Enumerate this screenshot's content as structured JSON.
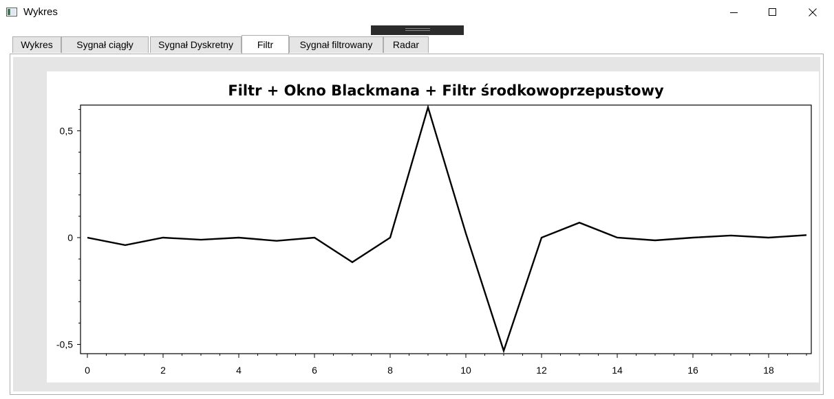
{
  "window": {
    "title": "Wykres",
    "icon": "app-window-icon",
    "controls": [
      "minimize-icon",
      "maximize-icon",
      "close-icon"
    ]
  },
  "tabs": [
    {
      "label": "Wykres",
      "active": false
    },
    {
      "label": "Sygnał ciągły",
      "active": false
    },
    {
      "label": "Sygnał Dyskretny",
      "active": false
    },
    {
      "label": "Filtr",
      "active": true
    },
    {
      "label": "Sygnał filtrowany",
      "active": false
    },
    {
      "label": "Radar",
      "active": false
    }
  ],
  "chart_data": {
    "type": "line",
    "title": "Filtr + Okno Blackmana + Filtr środkowoprzepustowy",
    "xlabel": "",
    "ylabel": "",
    "xlim": [
      0,
      19
    ],
    "ylim": [
      -0.53,
      0.62
    ],
    "xticks": [
      0,
      2,
      4,
      6,
      8,
      10,
      12,
      14,
      16,
      18
    ],
    "xtick_labels": [
      "0",
      "2",
      "4",
      "6",
      "8",
      "10",
      "12",
      "14",
      "16",
      "18"
    ],
    "yticks": [
      0.5,
      0,
      -0.5
    ],
    "ytick_labels": [
      "0,5",
      "0",
      "-0,5"
    ],
    "grid": false,
    "line_color": "#000000",
    "series": [
      {
        "x": [
          0,
          1,
          2,
          3,
          4,
          5,
          6,
          7,
          8,
          9,
          10,
          11,
          12,
          13,
          14,
          15,
          16,
          17,
          18,
          19
        ],
        "values": [
          0,
          -0.035,
          0,
          -0.01,
          0,
          -0.015,
          0,
          -0.115,
          0,
          0.61,
          0.02,
          -0.53,
          0,
          0.07,
          0,
          -0.013,
          0,
          0.01,
          0,
          0.012
        ]
      }
    ]
  }
}
